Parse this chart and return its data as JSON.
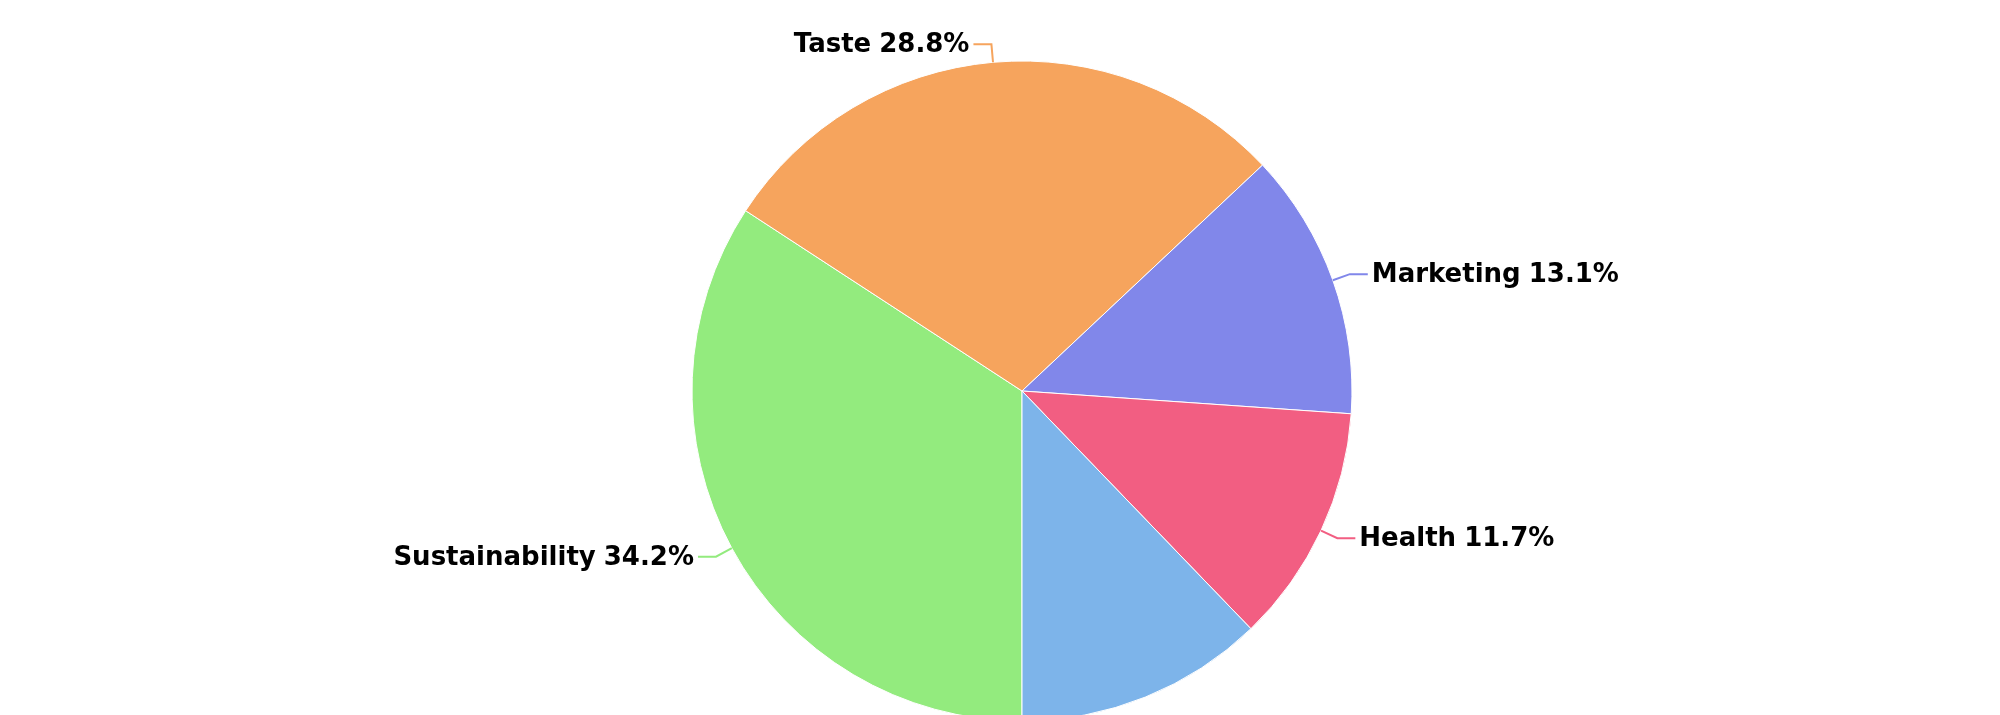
{
  "chart_data": {
    "type": "pie",
    "categories": [
      "Sustainability",
      "Taste",
      "Marketing",
      "Health",
      null
    ],
    "values": [
      34.2,
      28.8,
      13.1,
      11.7,
      12.2
    ],
    "value_labels": [
      "34.2%",
      "28.8%",
      "13.1%",
      "11.7%",
      null
    ],
    "colors": [
      "#93eb7e",
      "#f6a45d",
      "#8187ea",
      "#f25e82",
      "#7db4ea"
    ]
  }
}
